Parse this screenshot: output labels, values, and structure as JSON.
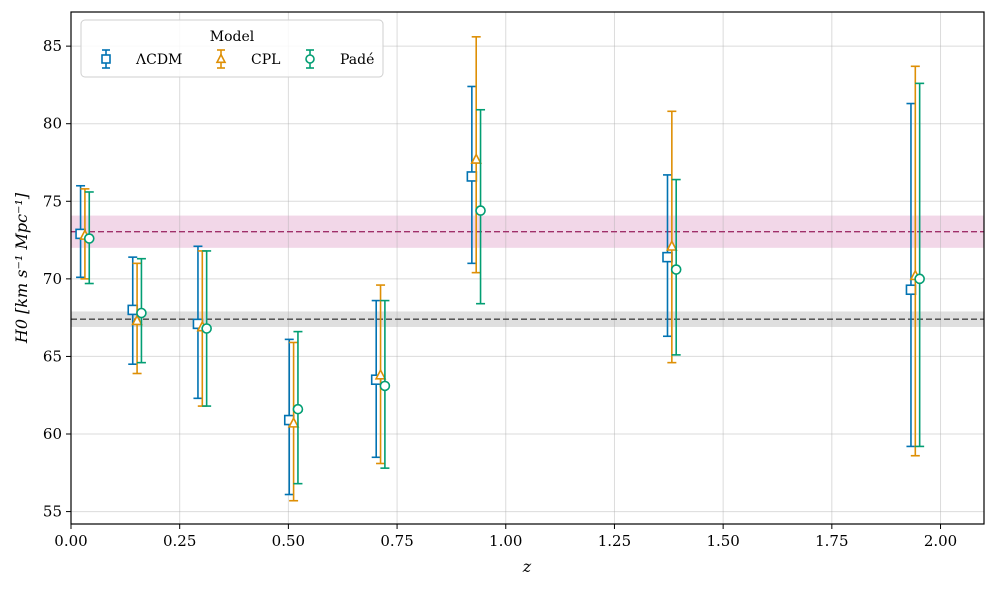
{
  "chart_data": {
    "type": "errorbar",
    "xlabel": "z",
    "ylabel": "H0 [km s⁻¹ Mpc⁻¹]",
    "xlim": [
      0.0,
      2.1
    ],
    "ylim": [
      54.2,
      87.2
    ],
    "xticks": [
      0.0,
      0.25,
      0.5,
      0.75,
      1.0,
      1.25,
      1.5,
      1.75,
      2.0
    ],
    "xtick_labels": [
      "0.00",
      "0.25",
      "0.50",
      "0.75",
      "1.00",
      "1.25",
      "1.50",
      "1.75",
      "2.00"
    ],
    "yticks": [
      55,
      60,
      65,
      70,
      75,
      80,
      85
    ],
    "ytick_labels": [
      "55",
      "60",
      "65",
      "70",
      "75",
      "80",
      "85"
    ],
    "grid": true,
    "legend": {
      "title": "Model",
      "placement": "top-left"
    },
    "series": [
      {
        "name": "ΛCDM",
        "marker": "square",
        "color": "#0173b2",
        "points": [
          {
            "z": 0.022,
            "y": 72.9,
            "lo": 70.1,
            "hi": 76.0
          },
          {
            "z": 0.142,
            "y": 68.0,
            "lo": 64.5,
            "hi": 71.4
          },
          {
            "z": 0.292,
            "y": 67.1,
            "lo": 62.3,
            "hi": 72.1
          },
          {
            "z": 0.502,
            "y": 60.9,
            "lo": 56.1,
            "hi": 66.1
          },
          {
            "z": 0.702,
            "y": 63.5,
            "lo": 58.5,
            "hi": 68.6
          },
          {
            "z": 0.922,
            "y": 76.6,
            "lo": 71.0,
            "hi": 82.4
          },
          {
            "z": 1.372,
            "y": 71.4,
            "lo": 66.3,
            "hi": 76.7
          },
          {
            "z": 1.932,
            "y": 69.3,
            "lo": 59.2,
            "hi": 81.3
          }
        ]
      },
      {
        "name": "CPL",
        "marker": "triangle",
        "color": "#de8f05",
        "points": [
          {
            "z": 0.032,
            "y": 72.8,
            "lo": 70.0,
            "hi": 75.8
          },
          {
            "z": 0.152,
            "y": 67.3,
            "lo": 63.9,
            "hi": 71.0
          },
          {
            "z": 0.302,
            "y": 66.9,
            "lo": 61.8,
            "hi": 71.8
          },
          {
            "z": 0.512,
            "y": 60.7,
            "lo": 55.7,
            "hi": 65.9
          },
          {
            "z": 0.712,
            "y": 63.8,
            "lo": 58.1,
            "hi": 69.6
          },
          {
            "z": 0.932,
            "y": 77.7,
            "lo": 70.4,
            "hi": 85.6
          },
          {
            "z": 1.382,
            "y": 72.1,
            "lo": 64.6,
            "hi": 80.8
          },
          {
            "z": 1.942,
            "y": 70.2,
            "lo": 58.6,
            "hi": 83.7
          }
        ]
      },
      {
        "name": "Padé",
        "marker": "circle",
        "color": "#029e73",
        "points": [
          {
            "z": 0.042,
            "y": 72.6,
            "lo": 69.7,
            "hi": 75.6
          },
          {
            "z": 0.162,
            "y": 67.8,
            "lo": 64.6,
            "hi": 71.3
          },
          {
            "z": 0.312,
            "y": 66.8,
            "lo": 61.8,
            "hi": 71.8
          },
          {
            "z": 0.522,
            "y": 61.6,
            "lo": 56.8,
            "hi": 66.6
          },
          {
            "z": 0.722,
            "y": 63.1,
            "lo": 57.8,
            "hi": 68.6
          },
          {
            "z": 0.942,
            "y": 74.4,
            "lo": 68.4,
            "hi": 80.9
          },
          {
            "z": 1.392,
            "y": 70.6,
            "lo": 65.1,
            "hi": 76.4
          },
          {
            "z": 1.952,
            "y": 70.0,
            "lo": 59.2,
            "hi": 82.6
          }
        ]
      }
    ],
    "reference_bands": [
      {
        "name": "high-h0-reference",
        "value": 73.04,
        "band": [
          72.0,
          74.08
        ],
        "line_color": "#a0306a",
        "band_color": "#ecc6de"
      },
      {
        "name": "low-h0-reference",
        "value": 67.4,
        "band": [
          66.9,
          67.9
        ],
        "line_color": "#444444",
        "band_color": "#d2d2d2"
      }
    ]
  }
}
